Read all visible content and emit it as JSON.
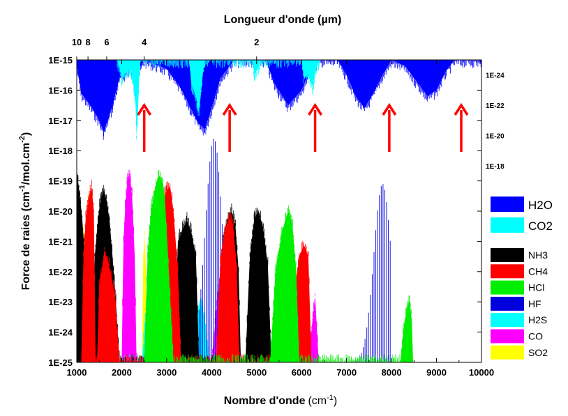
{
  "chart_data": {
    "type": "area",
    "top_xlabel": "Longueur d'onde (µm)",
    "xlabel_main": "Nombre d'onde",
    "xlabel_unit_base": "(cm",
    "xlabel_unit_exp": "-1",
    "xlabel_unit_close": ")",
    "ylabel_parts": [
      "Force de raies (cm",
      "-1",
      "/mol.cm",
      "-2",
      ")"
    ],
    "xlim": [
      1000,
      10000
    ],
    "ylim_exp": [
      -25,
      -15
    ],
    "x_ticks": [
      "1000",
      "2000",
      "3000",
      "4000",
      "5000",
      "6000",
      "7000",
      "8000",
      "9000",
      "10000"
    ],
    "y_ticks": [
      "1E-25",
      "1E-24",
      "1E-23",
      "1E-22",
      "1E-21",
      "1E-20",
      "1E-19",
      "1E-18",
      "1E-17",
      "1E-16",
      "1E-15"
    ],
    "top_ticks": [
      {
        "label": "10",
        "um": 10
      },
      {
        "label": "8",
        "um": 8
      },
      {
        "label": "6",
        "um": 6
      },
      {
        "label": "4",
        "um": 4
      },
      {
        "label": "2",
        "um": 2
      }
    ],
    "right_ticks": [
      {
        "label": "1E-24",
        "exp": -15.5
      },
      {
        "label": "1E-22",
        "exp": -16.5
      },
      {
        "label": "1E-20",
        "exp": -17.5
      },
      {
        "label": "1E-18",
        "exp": -18.5
      }
    ],
    "arrows_x": [
      2500,
      4400,
      6300,
      7950,
      9550
    ],
    "arrow_color": "#ff0000",
    "legend_top": [
      {
        "name": "H2O",
        "color": "#0000ff"
      },
      {
        "name": "CO2",
        "color": "#00ffff"
      }
    ],
    "legend": [
      {
        "name": "NH3",
        "color": "#000000"
      },
      {
        "name": "CH4",
        "color": "#ff0000"
      },
      {
        "name": "HCl",
        "color": "#00ee00"
      },
      {
        "name": "HF",
        "color": "#0000dd"
      },
      {
        "name": "H2S",
        "color": "#00ffff"
      },
      {
        "name": "CO",
        "color": "#ff00ff"
      },
      {
        "name": "SO2",
        "color": "#ffff00"
      }
    ],
    "series": [
      {
        "name": "H2O",
        "kind": "top",
        "color": "#0000ff",
        "envelope": [
          [
            1000,
            -15.2
          ],
          [
            1100,
            -16.1
          ],
          [
            1300,
            -16.5
          ],
          [
            1500,
            -17.0
          ],
          [
            1600,
            -17.4
          ],
          [
            1800,
            -16.5
          ],
          [
            1950,
            -15.6
          ],
          [
            2100,
            -15.4
          ],
          [
            2200,
            -15.3
          ],
          [
            2300,
            -16.0
          ],
          [
            2400,
            -15.3
          ],
          [
            2500,
            -15.0
          ],
          [
            3000,
            -15.3
          ],
          [
            3300,
            -15.9
          ],
          [
            3500,
            -16.5
          ],
          [
            3700,
            -17.1
          ],
          [
            3850,
            -17.3
          ],
          [
            4000,
            -16.6
          ],
          [
            4200,
            -15.6
          ],
          [
            4500,
            -15.0
          ],
          [
            5200,
            -15.0
          ],
          [
            5400,
            -15.8
          ],
          [
            5700,
            -16.5
          ],
          [
            6000,
            -16.0
          ],
          [
            6200,
            -15.3
          ],
          [
            6400,
            -15.0
          ],
          [
            6800,
            -15.0
          ],
          [
            7000,
            -15.5
          ],
          [
            7200,
            -16.2
          ],
          [
            7400,
            -16.6
          ],
          [
            7600,
            -16.1
          ],
          [
            7800,
            -15.5
          ],
          [
            8000,
            -15.0
          ],
          [
            8300,
            -15.2
          ],
          [
            8500,
            -15.6
          ],
          [
            8800,
            -16.2
          ],
          [
            9000,
            -16.0
          ],
          [
            9200,
            -15.4
          ],
          [
            9400,
            -15.0
          ],
          [
            9950,
            -15.0
          ],
          [
            10000,
            -15.2
          ]
        ]
      },
      {
        "name": "CO2",
        "kind": "top",
        "color": "#00ffff",
        "envelope": [
          [
            1900,
            -15.0
          ],
          [
            2000,
            -15.6
          ],
          [
            2100,
            -15.4
          ],
          [
            2200,
            -15.3
          ],
          [
            2300,
            -16.2
          ],
          [
            2330,
            -17.5
          ],
          [
            2360,
            -16.8
          ],
          [
            2390,
            -15.5
          ],
          [
            2420,
            -15.0
          ],
          [
            3500,
            -15.0
          ],
          [
            3550,
            -15.8
          ],
          [
            3650,
            -16.2
          ],
          [
            3700,
            -16.8
          ],
          [
            3750,
            -16.3
          ],
          [
            3800,
            -15.5
          ],
          [
            3850,
            -15.0
          ],
          [
            4900,
            -15.0
          ],
          [
            4950,
            -15.5
          ],
          [
            5050,
            -15.2
          ],
          [
            5100,
            -15.0
          ],
          [
            6000,
            -15.0
          ],
          [
            6050,
            -15.6
          ],
          [
            6150,
            -15.5
          ],
          [
            6250,
            -15.9
          ],
          [
            6300,
            -15.4
          ],
          [
            6400,
            -15.0
          ]
        ]
      },
      {
        "name": "SO2",
        "kind": "bottom",
        "color": "#ffff00",
        "envelope": [
          [
            1000,
            -25
          ],
          [
            1030,
            -21.5
          ],
          [
            1080,
            -20.8
          ],
          [
            1150,
            -20.6
          ],
          [
            1200,
            -21.6
          ],
          [
            1250,
            -19.6
          ],
          [
            1300,
            -19.5
          ],
          [
            1360,
            -20.8
          ],
          [
            1400,
            -25
          ],
          [
            2450,
            -25
          ],
          [
            2480,
            -21.5
          ],
          [
            2510,
            -20.8
          ],
          [
            2540,
            -22.0
          ],
          [
            2560,
            -25
          ]
        ]
      },
      {
        "name": "CO",
        "kind": "bottom",
        "color": "#ff00ff",
        "envelope": [
          [
            2000,
            -25
          ],
          [
            2040,
            -21.0
          ],
          [
            2080,
            -19.8
          ],
          [
            2130,
            -18.9
          ],
          [
            2180,
            -18.8
          ],
          [
            2230,
            -19.5
          ],
          [
            2290,
            -21.5
          ],
          [
            2330,
            -25
          ],
          [
            4000,
            -25
          ],
          [
            4150,
            -22.5
          ],
          [
            4250,
            -21.3
          ],
          [
            4300,
            -21.0
          ],
          [
            4400,
            -21.2
          ],
          [
            4470,
            -22.5
          ],
          [
            4520,
            -25
          ],
          [
            6150,
            -25
          ],
          [
            6250,
            -23.5
          ],
          [
            6300,
            -22.8
          ],
          [
            6380,
            -25
          ]
        ]
      },
      {
        "name": "H2S",
        "kind": "bottom",
        "color": "#00ffff",
        "envelope": [
          [
            1100,
            -25
          ],
          [
            1150,
            -23.2
          ],
          [
            1200,
            -21.5
          ],
          [
            1260,
            -22.5
          ],
          [
            1320,
            -25
          ],
          [
            2450,
            -25
          ],
          [
            2550,
            -23.0
          ],
          [
            2650,
            -22.0
          ],
          [
            2720,
            -21.8
          ],
          [
            2820,
            -22.3
          ],
          [
            2930,
            -23.2
          ],
          [
            3040,
            -25
          ],
          [
            3550,
            -25
          ],
          [
            3650,
            -23.5
          ],
          [
            3750,
            -23.0
          ],
          [
            3850,
            -23.6
          ],
          [
            3950,
            -25
          ]
        ]
      },
      {
        "name": "HF",
        "kind": "lines",
        "color": "#0000dd",
        "bands": [
          {
            "from": 3600,
            "to": 4500,
            "step": 40,
            "peak": 4050,
            "peak_exp": -17.6,
            "base_exp": -25,
            "width": 260
          },
          {
            "from": 7050,
            "to": 8000,
            "step": 40,
            "peak": 7800,
            "peak_exp": -19.1,
            "base_exp": -25,
            "width": 260
          }
        ]
      },
      {
        "name": "NH3",
        "kind": "bottom",
        "color": "#000000",
        "envelope": [
          [
            1000,
            -25
          ],
          [
            1000,
            -18.6
          ],
          [
            1030,
            -19.0
          ],
          [
            1070,
            -19.5
          ],
          [
            1120,
            -20.2
          ],
          [
            1180,
            -21.5
          ],
          [
            1230,
            -22.5
          ],
          [
            1280,
            -25
          ],
          [
            1350,
            -25
          ],
          [
            1400,
            -21.5
          ],
          [
            1470,
            -20.3
          ],
          [
            1530,
            -19.6
          ],
          [
            1600,
            -19.3
          ],
          [
            1660,
            -19.6
          ],
          [
            1730,
            -20.3
          ],
          [
            1800,
            -21.6
          ],
          [
            1870,
            -23.0
          ],
          [
            1950,
            -25
          ],
          [
            3150,
            -25
          ],
          [
            3250,
            -21.0
          ],
          [
            3350,
            -20.6
          ],
          [
            3450,
            -20.3
          ],
          [
            3550,
            -20.7
          ],
          [
            3650,
            -21.5
          ],
          [
            3720,
            -25
          ],
          [
            4150,
            -25
          ],
          [
            4250,
            -21.0
          ],
          [
            4350,
            -20.3
          ],
          [
            4450,
            -20.0
          ],
          [
            4530,
            -20.5
          ],
          [
            4600,
            -22.0
          ],
          [
            4650,
            -25
          ],
          [
            4750,
            -25
          ],
          [
            4850,
            -21.5
          ],
          [
            4950,
            -20.2
          ],
          [
            5050,
            -20.0
          ],
          [
            5150,
            -20.6
          ],
          [
            5250,
            -21.8
          ],
          [
            5330,
            -25
          ]
        ]
      },
      {
        "name": "CH4",
        "kind": "bottom",
        "color": "#ff0000",
        "envelope": [
          [
            1100,
            -25
          ],
          [
            1150,
            -21.5
          ],
          [
            1200,
            -20.2
          ],
          [
            1280,
            -19.5
          ],
          [
            1330,
            -19.2
          ],
          [
            1380,
            -20.0
          ],
          [
            1420,
            -25
          ],
          [
            1450,
            -25
          ],
          [
            1500,
            -22.5
          ],
          [
            1620,
            -21.3
          ],
          [
            1720,
            -21.8
          ],
          [
            1850,
            -22.8
          ],
          [
            1950,
            -25
          ],
          [
            2650,
            -25
          ],
          [
            2800,
            -20.5
          ],
          [
            2900,
            -19.7
          ],
          [
            3000,
            -19.3
          ],
          [
            3080,
            -19.2
          ],
          [
            3150,
            -20.0
          ],
          [
            3250,
            -22.0
          ],
          [
            3320,
            -25
          ],
          [
            4100,
            -25
          ],
          [
            4200,
            -21.5
          ],
          [
            4300,
            -20.6
          ],
          [
            4400,
            -20.2
          ],
          [
            4480,
            -20.5
          ],
          [
            4560,
            -22.0
          ],
          [
            4620,
            -25
          ],
          [
            5800,
            -25
          ],
          [
            5850,
            -22.5
          ],
          [
            5950,
            -21.5
          ],
          [
            6050,
            -21.1
          ],
          [
            6150,
            -21.5
          ],
          [
            6220,
            -25
          ]
        ]
      },
      {
        "name": "HCl",
        "kind": "bottom",
        "color": "#00ee00",
        "envelope": [
          [
            2500,
            -25
          ],
          [
            2580,
            -21.3
          ],
          [
            2650,
            -20.0
          ],
          [
            2760,
            -19.1
          ],
          [
            2830,
            -18.8
          ],
          [
            2900,
            -19.0
          ],
          [
            2960,
            -19.6
          ],
          [
            3020,
            -21.2
          ],
          [
            3100,
            -23.5
          ],
          [
            3150,
            -25
          ],
          [
            5300,
            -25
          ],
          [
            5420,
            -22.0
          ],
          [
            5550,
            -20.8
          ],
          [
            5650,
            -20.2
          ],
          [
            5720,
            -20.0
          ],
          [
            5800,
            -20.5
          ],
          [
            5880,
            -22.0
          ],
          [
            5950,
            -25
          ],
          [
            8200,
            -25
          ],
          [
            8260,
            -24.0
          ],
          [
            8330,
            -23.3
          ],
          [
            8400,
            -22.9
          ],
          [
            8450,
            -23.6
          ],
          [
            8480,
            -25
          ]
        ]
      }
    ]
  }
}
